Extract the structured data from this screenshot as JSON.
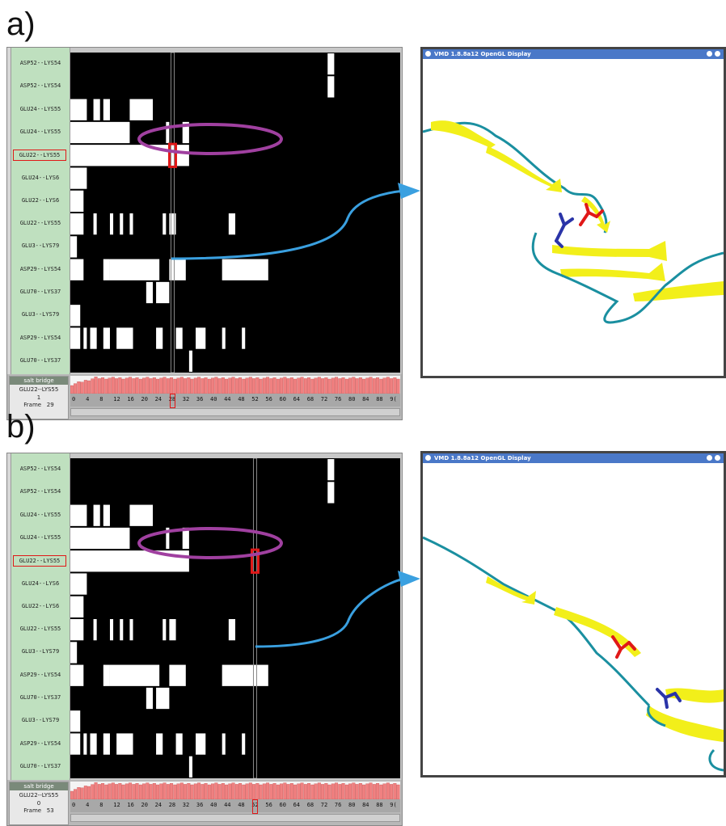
{
  "rows": [
    "ASP52--LYS54",
    "ASP52--LYS54",
    "GLU24--LYS55",
    "GLU24--LYS55",
    "GLU22--LYS55",
    "GLU24--LYS6",
    "GLU22--LYS6",
    "GLU22--LYS55",
    "GLU3--LYS79",
    "ASP29--LYS54",
    "GLU70--LYS37",
    "GLU3--LYS79",
    "ASP29--LYS54",
    "GLU70--LYS37"
  ],
  "highlighted_row": 4,
  "axis_ticks": [
    "0",
    "4",
    "8",
    "12",
    "16",
    "20",
    "24",
    "28",
    "32",
    "36",
    "40",
    "44",
    "48",
    "52",
    "56",
    "60",
    "64",
    "68",
    "72",
    "76",
    "80",
    "84",
    "88",
    "9("
  ],
  "colors": {
    "pair_on": "#ffffff",
    "pair_off": "#000000",
    "bar": "#f08080",
    "label_bg": "#bfe0bf",
    "titlebar": "#4a78c8",
    "ribbon": "#f2ef1a",
    "coil": "#1a8fa0",
    "acid": "#e01818",
    "base": "#2a34a8",
    "oval": "#a040a0",
    "arrow": "#3aa0e0"
  },
  "panels": [
    {
      "letter": "a)",
      "salt_bridge_label": "salt bridge",
      "selected_pair": "GLU22--LYS55",
      "state": "1",
      "frame_label": "Frame",
      "frame_value": "29",
      "vmd_title": "VMD 1.8.8a12 OpenGL Display",
      "frame_fraction": 0.31
    },
    {
      "letter": "b)",
      "salt_bridge_label": "salt bridge",
      "selected_pair": "GLU22--LYS55",
      "state": "0",
      "frame_label": "Frame",
      "frame_value": "53",
      "vmd_title": "VMD 1.8.8a12 OpenGL Display",
      "frame_fraction": 0.56
    }
  ]
}
